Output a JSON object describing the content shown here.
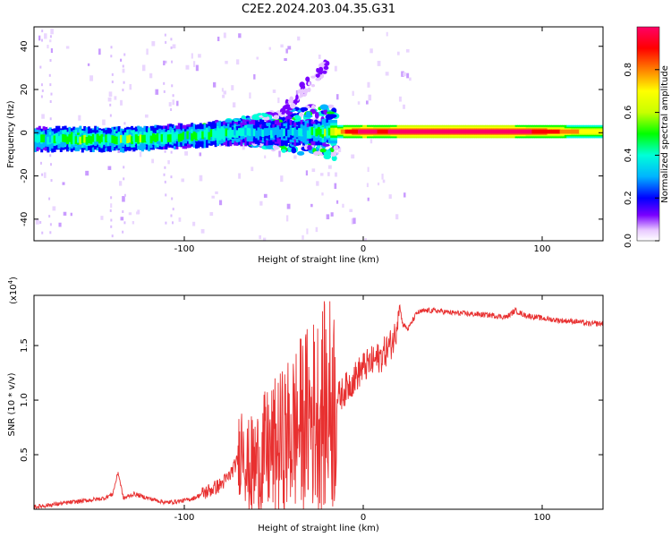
{
  "title": "C2E2.2024.203.04.35.G31",
  "colorbar": {
    "label": "Normalized spectral amplitude",
    "ticks": [
      "0.0",
      "0.2",
      "0.4",
      "0.6",
      "0.8"
    ],
    "tick_values": [
      0.0,
      0.2,
      0.4,
      0.6,
      0.8
    ]
  },
  "chart_data": [
    {
      "type": "heatmap",
      "title": "",
      "xlabel": "Height of straight line (km)",
      "ylabel": "Frequency (Hz)",
      "xlim": [
        -184,
        134
      ],
      "ylim": [
        -50,
        49
      ],
      "x_ticks": [
        -100,
        0,
        100
      ],
      "x_tick_labels": [
        "-100",
        "0",
        "100"
      ],
      "y_ticks": [
        -40,
        -20,
        0,
        20,
        40
      ],
      "y_tick_labels": [
        "-40",
        "-20",
        "0",
        "20",
        "40"
      ],
      "colormap": [
        "#ffffff",
        "#e8c8ff",
        "#7a00ff",
        "#0000ff",
        "#00b4ff",
        "#00ffd8",
        "#00ff00",
        "#c8ff00",
        "#ffff00",
        "#ff8000",
        "#ff0000",
        "#ff0066"
      ],
      "ridge": [
        [
          -184,
          -3,
          0.45
        ],
        [
          -170,
          -3,
          0.5
        ],
        [
          -160,
          -3,
          0.55
        ],
        [
          -150,
          -3,
          0.5
        ],
        [
          -140,
          -3,
          0.5
        ],
        [
          -130,
          -3,
          0.55
        ],
        [
          -120,
          -2.5,
          0.5
        ],
        [
          -110,
          -2,
          0.5
        ],
        [
          -100,
          -1.5,
          0.45
        ],
        [
          -90,
          -1,
          0.5
        ],
        [
          -80,
          -0.5,
          0.5
        ],
        [
          -70,
          0,
          0.45
        ],
        [
          -60,
          0,
          0.4
        ],
        [
          -50,
          0,
          0.4
        ],
        [
          -40,
          0,
          0.4
        ],
        [
          -30,
          0,
          0.45
        ],
        [
          -20,
          0.5,
          0.55
        ],
        [
          -10,
          0.5,
          0.85
        ],
        [
          0,
          0.5,
          0.95
        ],
        [
          10,
          0.5,
          0.9
        ],
        [
          20,
          0.5,
          0.95
        ],
        [
          40,
          0.5,
          0.95
        ],
        [
          60,
          0.5,
          0.95
        ],
        [
          80,
          0.5,
          0.95
        ],
        [
          100,
          0.5,
          0.9
        ],
        [
          120,
          0.5,
          0.75
        ],
        [
          134,
          0.5,
          0.7
        ]
      ]
    },
    {
      "type": "line",
      "title": "",
      "xlabel": "Height of straight line (km)",
      "ylabel": "SNR (10 * v/v)",
      "multiplier_label": "(x10",
      "multiplier_exp": "4",
      "xlim": [
        -184,
        134
      ],
      "ylim": [
        0,
        1.96
      ],
      "x_ticks": [
        -100,
        0,
        100
      ],
      "x_tick_labels": [
        "-100",
        "0",
        "100"
      ],
      "y_ticks": [
        0.5,
        1.0,
        1.5
      ],
      "y_tick_labels": [
        "0.5",
        "1.0",
        "1.5"
      ],
      "grid": false,
      "series": [
        {
          "color": "#e83030",
          "x": [
            -184,
            -175,
            -165,
            -155,
            -145,
            -140,
            -137,
            -134,
            -128,
            -120,
            -110,
            -100,
            -95,
            -90,
            -85,
            -80,
            -75,
            -70,
            -67,
            -65,
            -60,
            -55,
            -50,
            -45,
            -40,
            -35,
            -30,
            -25,
            -20,
            -15,
            -10,
            -5,
            0,
            5,
            10,
            15,
            18,
            20,
            22,
            25,
            30,
            35,
            40,
            50,
            60,
            70,
            80,
            85,
            90,
            100,
            110,
            120,
            125,
            134
          ],
          "y": [
            0.02,
            0.04,
            0.06,
            0.08,
            0.1,
            0.14,
            0.34,
            0.1,
            0.14,
            0.1,
            0.06,
            0.08,
            0.1,
            0.14,
            0.18,
            0.22,
            0.3,
            0.45,
            0.7,
            0.35,
            0.4,
            0.5,
            0.55,
            0.6,
            0.7,
            0.78,
            0.85,
            0.9,
            0.95,
            1.0,
            1.1,
            1.2,
            1.3,
            1.35,
            1.4,
            1.5,
            1.6,
            1.9,
            1.7,
            1.65,
            1.8,
            1.82,
            1.82,
            1.8,
            1.79,
            1.78,
            1.76,
            1.82,
            1.78,
            1.75,
            1.73,
            1.72,
            1.7,
            1.7
          ]
        }
      ]
    }
  ]
}
